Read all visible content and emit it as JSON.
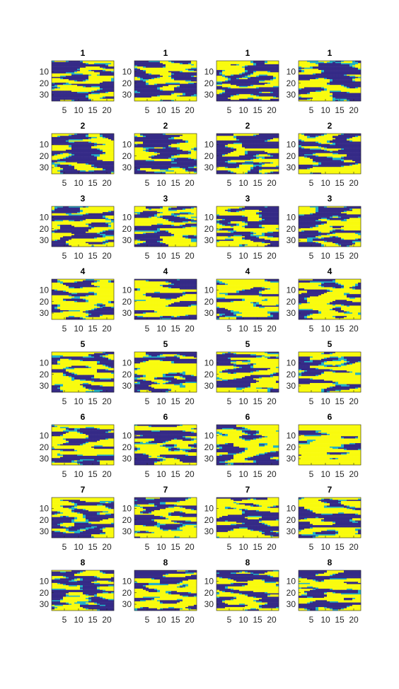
{
  "chart_data": {
    "type": "heatmap",
    "layout": {
      "rows": 8,
      "cols": 4
    },
    "image_size": {
      "cols": 22,
      "rows": 35
    },
    "color_scale": {
      "low": "#352a87",
      "mid": "#20b2c8",
      "high": "#f9fb0e"
    },
    "x_ticks": [
      "5",
      "10",
      "15",
      "20"
    ],
    "y_ticks": [
      "10",
      "20",
      "30"
    ],
    "panels": [
      {
        "title": "1",
        "fill": 0.45
      },
      {
        "title": "1",
        "fill": 0.45
      },
      {
        "title": "1",
        "fill": 0.45
      },
      {
        "title": "1",
        "fill": 0.45
      },
      {
        "title": "2",
        "fill": 0.4
      },
      {
        "title": "2",
        "fill": 0.4
      },
      {
        "title": "2",
        "fill": 0.4
      },
      {
        "title": "2",
        "fill": 0.45
      },
      {
        "title": "3",
        "fill": 0.5
      },
      {
        "title": "3",
        "fill": 0.55
      },
      {
        "title": "3",
        "fill": 0.5
      },
      {
        "title": "3",
        "fill": 0.45
      },
      {
        "title": "4",
        "fill": 0.68
      },
      {
        "title": "4",
        "fill": 0.62
      },
      {
        "title": "4",
        "fill": 0.72
      },
      {
        "title": "4",
        "fill": 0.66
      },
      {
        "title": "5",
        "fill": 0.6
      },
      {
        "title": "5",
        "fill": 0.58
      },
      {
        "title": "5",
        "fill": 0.58
      },
      {
        "title": "5",
        "fill": 0.62
      },
      {
        "title": "6",
        "fill": 0.55
      },
      {
        "title": "6",
        "fill": 0.52
      },
      {
        "title": "6",
        "fill": 0.6
      },
      {
        "title": "6",
        "fill": 0.85
      },
      {
        "title": "7",
        "fill": 0.5
      },
      {
        "title": "7",
        "fill": 0.55
      },
      {
        "title": "7",
        "fill": 0.55
      },
      {
        "title": "7",
        "fill": 0.55
      },
      {
        "title": "8",
        "fill": 0.45
      },
      {
        "title": "8",
        "fill": 0.58
      },
      {
        "title": "8",
        "fill": 0.5
      },
      {
        "title": "8",
        "fill": 0.5
      }
    ]
  }
}
